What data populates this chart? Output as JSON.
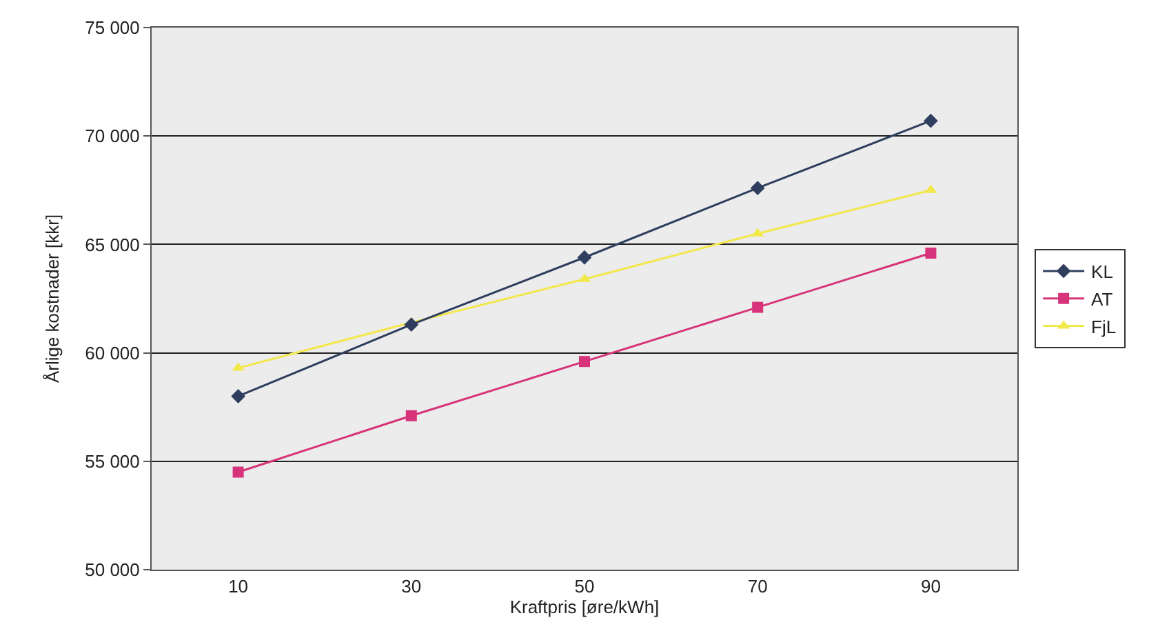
{
  "chart_data": {
    "type": "line",
    "xlabel": "Kraftpris [øre/kWh]",
    "ylabel": "Årlige kostnader [kkr]",
    "categories": [
      "10",
      "30",
      "50",
      "70",
      "90"
    ],
    "series": [
      {
        "name": "KL",
        "color": "#2f3e5e",
        "marker": "diamond",
        "values": [
          58000,
          61300,
          64400,
          67600,
          70700
        ]
      },
      {
        "name": "AT",
        "color": "#d6337a",
        "marker": "square",
        "values": [
          54500,
          57100,
          59600,
          62100,
          64600
        ]
      },
      {
        "name": "FjL",
        "color": "#f2e84a",
        "marker": "triangle",
        "values": [
          59300,
          61400,
          63400,
          65500,
          67500
        ]
      }
    ],
    "ylim": [
      50000,
      75000
    ],
    "yticks": [
      {
        "value": 50000,
        "label": "50 000"
      },
      {
        "value": 55000,
        "label": "55 000"
      },
      {
        "value": 60000,
        "label": "60 000"
      },
      {
        "value": 65000,
        "label": "65 000"
      },
      {
        "value": 70000,
        "label": "70 000"
      },
      {
        "value": 75000,
        "label": "75 000"
      }
    ],
    "grid": "y",
    "legend": "right",
    "line_style": "solid"
  }
}
